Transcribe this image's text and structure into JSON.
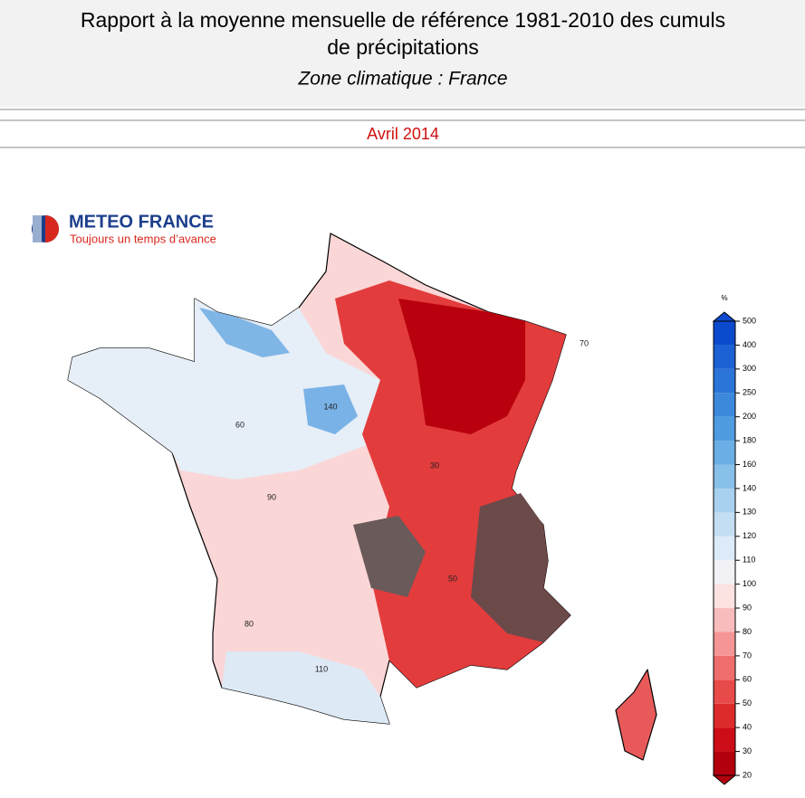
{
  "header": {
    "title_line1": "Rapport à la moyenne mensuelle de référence 1981-2010 des cumuls",
    "title_line2": "de précipitations",
    "subtitle": "Zone climatique : France",
    "period": "Avril 2014"
  },
  "logo": {
    "name": "METEO FRANCE",
    "tagline": "Toujours un temps d’avance"
  },
  "map": {
    "contour_labels": [
      140,
      30,
      90,
      80,
      110,
      60,
      70,
      50
    ]
  },
  "colorbar": {
    "unit": "%",
    "ticks": [
      20,
      30,
      40,
      50,
      60,
      70,
      80,
      90,
      100,
      110,
      120,
      130,
      140,
      160,
      180,
      200,
      250,
      300,
      400,
      500
    ],
    "colors": [
      "#b3000f",
      "#cc0c16",
      "#dd2b2b",
      "#e84a4a",
      "#ef6d6d",
      "#f59595",
      "#f9bcbc",
      "#fde2e2",
      "#f1f1f6",
      "#dcebf7",
      "#c3def3",
      "#a8d0ef",
      "#89c0ea",
      "#69aee4",
      "#4f9ce0",
      "#3c89dc",
      "#2b75d8",
      "#1b61d4",
      "#0b4acc"
    ]
  }
}
